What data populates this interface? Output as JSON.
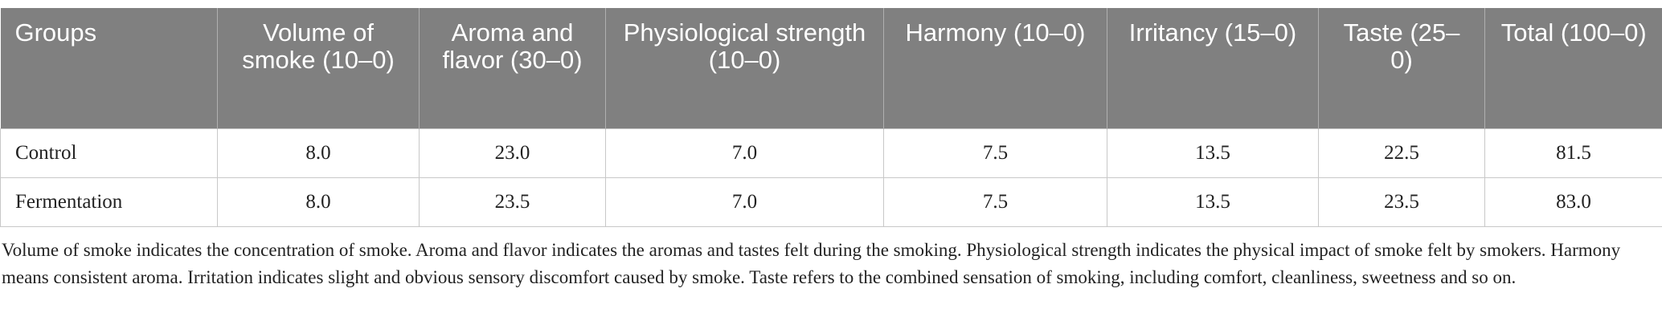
{
  "table": {
    "header": [
      "Groups",
      "Volume of smoke (10–0)",
      "Aroma and flavor (30–0)",
      "Physiological strength (10–0)",
      "Harmony (10–0)",
      "Irritancy (15–0)",
      "Taste (25–0)",
      "Total (100–0)"
    ],
    "rows": [
      [
        "Control",
        "8.0",
        "23.0",
        "7.0",
        "7.5",
        "13.5",
        "22.5",
        "81.5"
      ],
      [
        "Fermentation",
        "8.0",
        "23.5",
        "7.0",
        "7.5",
        "13.5",
        "23.5",
        "83.0"
      ]
    ]
  },
  "footnote": "Volume of smoke indicates the concentration of smoke. Aroma and flavor indicates the aromas and tastes felt during the smoking. Physiological strength indicates the physical impact of smoke felt by smokers. Harmony means consistent aroma. Irritation indicates slight and obvious sensory discomfort caused by smoke. Taste refers to the combined sensation of smoking, including comfort, cleanliness, sweetness and so on."
}
